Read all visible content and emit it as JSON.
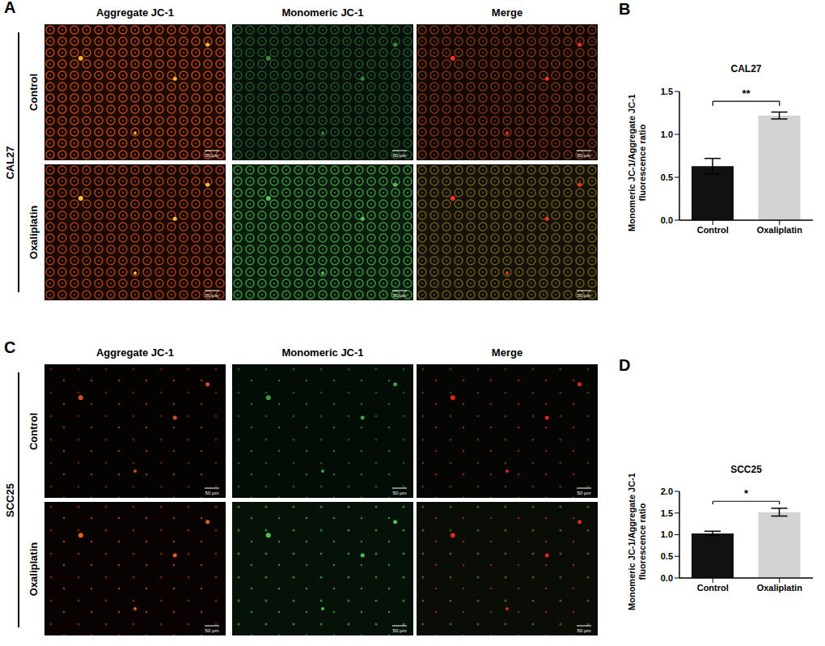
{
  "chart_data": [
    {
      "type": "bar",
      "panel": "B",
      "title": "CAL27",
      "y_label": "Monomeric JC-1/Aggregate JC-1\nfluorescence ratio",
      "categories": [
        "Control",
        "Oxaliplatin"
      ],
      "values": [
        0.63,
        1.22
      ],
      "errors": [
        0.09,
        0.04
      ],
      "colors": [
        "#111111",
        "#d3d3d3"
      ],
      "ylim": [
        0,
        1.5
      ],
      "yticks": [
        {
          "value": 0,
          "label": "0.0"
        },
        {
          "value": 0.5,
          "label": "0.5"
        },
        {
          "value": 1,
          "label": "1.0"
        },
        {
          "value": 1.5,
          "label": "1.5"
        }
      ],
      "annotation": "**"
    },
    {
      "type": "bar",
      "panel": "D",
      "title": "SCC25",
      "y_label": "Monomeric JC-1/Aggregate JC-1\nfluorescence ratio",
      "categories": [
        "Control",
        "Oxaliplatin"
      ],
      "values": [
        1.03,
        1.52
      ],
      "errors": [
        0.05,
        0.09
      ],
      "colors": [
        "#111111",
        "#d3d3d3"
      ],
      "ylim": [
        0,
        2
      ],
      "yticks": [
        {
          "value": 0,
          "label": "0.0"
        },
        {
          "value": 0.5,
          "label": "0.5"
        },
        {
          "value": 1,
          "label": "1.0"
        },
        {
          "value": 1.5,
          "label": "1.5"
        },
        {
          "value": 2,
          "label": "2.0"
        }
      ],
      "annotation": "*"
    }
  ],
  "images": [
    {
      "panel": "A",
      "cell_line": "CAL27",
      "columns": [
        "Aggregate JC-1",
        "Monomeric JC-1",
        "Merge"
      ],
      "rows": [
        "Control",
        "Oxaliplatin"
      ],
      "scale_bar": "50 μm"
    },
    {
      "panel": "C",
      "cell_line": "SCC25",
      "columns": [
        "Aggregate JC-1",
        "Monomeric JC-1",
        "Merge"
      ],
      "rows": [
        "Control",
        "Oxaliplatin"
      ],
      "scale_bar": "50 μm"
    }
  ]
}
